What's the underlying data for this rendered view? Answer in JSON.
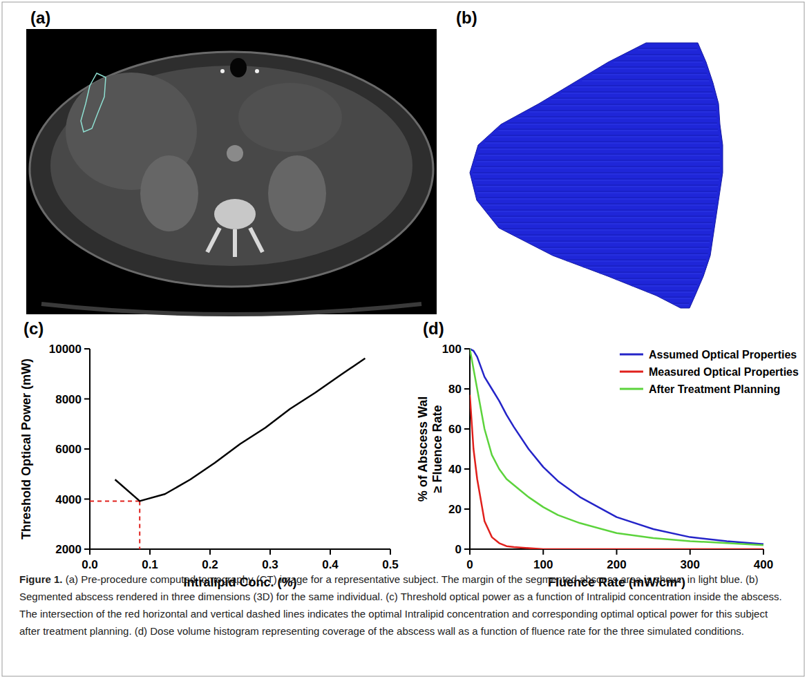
{
  "figure": {
    "panel_labels": [
      "(a)",
      "(b)",
      "(c)",
      "(d)"
    ],
    "caption_title": "Figure 1.",
    "caption": "(a) Pre-procedure computed tomography (CT) image for a representative subject. The margin of the segmented abscess area is shown in light blue. (b) Segmented abscess rendered in three dimensions (3D) for the same individual. (c) Threshold optical power as a function of Intralipid concentration inside the abscess. The intersection of the red horizontal and vertical dashed lines indicates the optimal Intralipid concentration and corresponding optimal optical power for this subject after treatment planning. (d) Dose volume histogram representing coverage of the abscess wall as a function of fluence rate for the three simulated conditions."
  },
  "chart_data": [
    {
      "type": "line",
      "xlabel": "Intralipid Conc. (%)",
      "ylabel": "Threshold Optical Power (mW)",
      "x": [
        0.042,
        0.083,
        0.125,
        0.167,
        0.208,
        0.25,
        0.292,
        0.333,
        0.375,
        0.417,
        0.458
      ],
      "series": [
        {
          "color": "#000000",
          "values": [
            4780,
            3920,
            4200,
            4780,
            5450,
            6200,
            6850,
            7600,
            8250,
            8950,
            9620
          ]
        }
      ],
      "optimal_point": {
        "x": 0.083,
        "y": 3920
      },
      "xlim": [
        0,
        0.5
      ],
      "xticks": [
        {
          "value": 0,
          "label": "0.0"
        },
        0.1,
        0.2,
        0.3,
        0.4,
        0.5
      ],
      "ylim": [
        2000,
        10000
      ],
      "yticks": [
        2000,
        4000,
        6000,
        8000,
        10000
      ],
      "grid": false
    },
    {
      "type": "line",
      "xlabel": "Fluence Rate (mW/cm²)",
      "ylabel": [
        "% of Abscess Wal",
        "≥ Fluence Rate"
      ],
      "x": [
        0,
        5,
        10,
        20,
        30,
        40,
        50,
        60,
        80,
        100,
        120,
        150,
        200,
        250,
        300,
        350,
        400
      ],
      "series": [
        {
          "name": "Assumed Optical Properties",
          "color": "#2424c8",
          "values": [
            100,
            99,
            96,
            86,
            80,
            74,
            67,
            61,
            50,
            41,
            34,
            26,
            16,
            10,
            6,
            4,
            2.5
          ]
        },
        {
          "name": "Measured Optical Properties",
          "color": "#e0201c",
          "values": [
            77,
            50,
            35,
            14,
            6,
            3,
            1.5,
            1,
            0.5,
            0,
            0,
            0,
            0,
            0,
            0,
            0,
            0
          ]
        },
        {
          "name": "After Treatment Planning",
          "color": "#5cd33c",
          "values": [
            100,
            90,
            80,
            60,
            47,
            40,
            35,
            32,
            26,
            21,
            17,
            13,
            8,
            5.5,
            4,
            3,
            2
          ]
        }
      ],
      "xlim": [
        0,
        400
      ],
      "xticks": [
        0,
        100,
        200,
        300,
        400
      ],
      "ylim": [
        0,
        100
      ],
      "yticks": [
        0,
        20,
        40,
        60,
        80,
        100
      ],
      "grid": false,
      "legend": "top-right"
    }
  ]
}
